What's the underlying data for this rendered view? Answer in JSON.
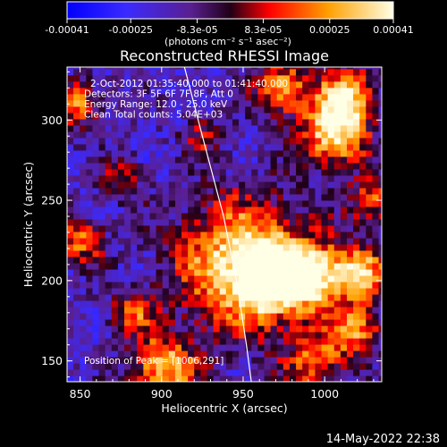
{
  "colorbar": {
    "ticks": [
      "-0.00041",
      "-0.00025",
      "-8.3e-05",
      "8.3e-05",
      "0.00025",
      "0.00041"
    ],
    "unit_label": "(photons cm⁻² s⁻¹ asec⁻²)",
    "range": [
      -0.00041,
      0.00041
    ]
  },
  "chart_data": {
    "type": "heatmap",
    "title": "Reconstructed RHESSI Image",
    "xlabel": "Heliocentric X (arcsec)",
    "ylabel": "Heliocentric Y (arcsec)",
    "xlim": [
      842,
      1035
    ],
    "ylim": [
      137,
      333
    ],
    "xticks": [
      "850",
      "900",
      "950",
      "1000"
    ],
    "yticks": [
      "150",
      "200",
      "250",
      "300"
    ],
    "annotations": [
      "2-Oct-2012 01:35:40.000 to 01:41:40.000",
      "Detectors: 3F 5F 6F 7F 8F, Att 0",
      "Energy Range: 12.0 - 25.0 keV",
      "Clean     Total counts: 5.04E+03"
    ],
    "peak_text": "Position of Peak = [1006,291]",
    "peak": [
      1006,
      291
    ],
    "limb": {
      "x": [
        914,
        925,
        938,
        946,
        952,
        955
      ],
      "y": [
        333,
        290,
        240,
        200,
        160,
        137
      ]
    },
    "sources": [
      {
        "x": 950,
        "y": 210,
        "r": 28,
        "v": 0.00041
      },
      {
        "x": 967,
        "y": 202,
        "r": 14,
        "v": 0.00036
      },
      {
        "x": 993,
        "y": 203,
        "r": 14,
        "v": 0.00033
      },
      {
        "x": 1022,
        "y": 205,
        "r": 12,
        "v": 0.0003
      },
      {
        "x": 1006,
        "y": 292,
        "r": 14,
        "v": 0.00041
      },
      {
        "x": 1013,
        "y": 316,
        "r": 12,
        "v": 0.00034
      },
      {
        "x": 974,
        "y": 320,
        "r": 12,
        "v": 0.00027
      },
      {
        "x": 1030,
        "y": 250,
        "r": 10,
        "v": 0.0002
      },
      {
        "x": 902,
        "y": 146,
        "r": 14,
        "v": 0.00032
      },
      {
        "x": 848,
        "y": 310,
        "r": 10,
        "v": 0.00022
      },
      {
        "x": 850,
        "y": 225,
        "r": 10,
        "v": 0.0002
      },
      {
        "x": 882,
        "y": 180,
        "r": 10,
        "v": 0.00016
      },
      {
        "x": 995,
        "y": 150,
        "r": 14,
        "v": 0.0002
      },
      {
        "x": 875,
        "y": 265,
        "r": 9,
        "v": 0.0001
      },
      {
        "x": 925,
        "y": 290,
        "r": 9,
        "v": 6e-05
      },
      {
        "x": 1020,
        "y": 170,
        "r": 10,
        "v": 0.00025
      }
    ]
  },
  "footer": {
    "date": "14-May-2022 22:38"
  }
}
